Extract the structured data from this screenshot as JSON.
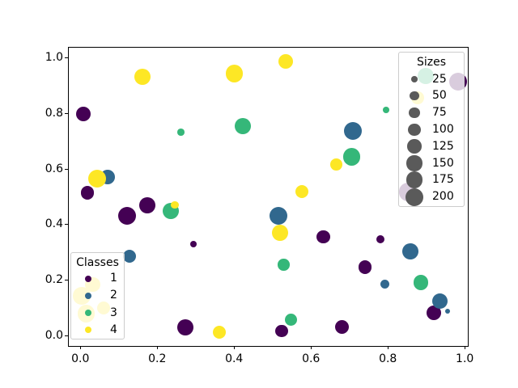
{
  "figure": {
    "background": "#ffffff",
    "axes_edge_color": "#000000"
  },
  "chart_data": {
    "type": "scatter",
    "title": "",
    "xlabel": "",
    "ylabel": "",
    "grid": false,
    "xlim": [
      -0.03,
      1.008
    ],
    "ylim": [
      -0.035,
      1.035
    ],
    "x_ticks": [
      0.0,
      0.2,
      0.4,
      0.6,
      0.8,
      1.0
    ],
    "y_ticks": [
      0.0,
      0.2,
      0.4,
      0.6,
      0.8,
      1.0
    ],
    "x_tick_labels": [
      "0.0",
      "0.2",
      "0.4",
      "0.6",
      "0.8",
      "1.0"
    ],
    "y_tick_labels": [
      "0.0",
      "0.2",
      "0.4",
      "0.6",
      "0.8",
      "1.0"
    ],
    "size_note": "points are [x, y, size] where size matches the Sizes legend scale (25-200)",
    "series": [
      {
        "name": "1",
        "color": "#440154",
        "points": [
          [
            0.008,
            0.797,
            140
          ],
          [
            0.018,
            0.514,
            110
          ],
          [
            0.122,
            0.432,
            200
          ],
          [
            0.175,
            0.469,
            160
          ],
          [
            0.294,
            0.33,
            30
          ],
          [
            0.274,
            0.032,
            160
          ],
          [
            0.524,
            0.019,
            95
          ],
          [
            0.632,
            0.357,
            110
          ],
          [
            0.681,
            0.034,
            120
          ],
          [
            0.741,
            0.248,
            110
          ],
          [
            0.78,
            0.348,
            40
          ],
          [
            0.852,
            0.517,
            210
          ],
          [
            0.919,
            0.085,
            130
          ],
          [
            0.983,
            0.912,
            200
          ]
        ]
      },
      {
        "name": "2",
        "color": "#31688e",
        "points": [
          [
            0.071,
            0.57,
            130
          ],
          [
            0.128,
            0.287,
            110
          ],
          [
            0.515,
            0.433,
            200
          ],
          [
            0.709,
            0.736,
            200
          ],
          [
            0.792,
            0.186,
            50
          ],
          [
            0.859,
            0.304,
            160
          ],
          [
            0.936,
            0.126,
            150
          ],
          [
            0.956,
            0.09,
            15
          ]
        ]
      },
      {
        "name": "3",
        "color": "#35b779",
        "points": [
          [
            0.236,
            0.449,
            160
          ],
          [
            0.262,
            0.732,
            30
          ],
          [
            0.423,
            0.754,
            160
          ],
          [
            0.529,
            0.256,
            85
          ],
          [
            0.548,
            0.06,
            95
          ],
          [
            0.706,
            0.644,
            190
          ],
          [
            0.795,
            0.812,
            25
          ],
          [
            0.886,
            0.193,
            140
          ],
          [
            0.899,
            0.933,
            160
          ]
        ]
      },
      {
        "name": "4",
        "color": "#fde725",
        "points": [
          [
            0.004,
            0.145,
            190
          ],
          [
            0.015,
            0.081,
            190
          ],
          [
            0.032,
            0.186,
            140
          ],
          [
            0.043,
            0.565,
            200
          ],
          [
            0.061,
            0.102,
            110
          ],
          [
            0.161,
            0.93,
            160
          ],
          [
            0.246,
            0.47,
            35
          ],
          [
            0.362,
            0.014,
            110
          ],
          [
            0.401,
            0.942,
            185
          ],
          [
            0.52,
            0.37,
            160
          ],
          [
            0.534,
            0.986,
            130
          ],
          [
            0.576,
            0.519,
            110
          ],
          [
            0.665,
            0.617,
            90
          ],
          [
            0.878,
            0.855,
            100
          ]
        ]
      }
    ],
    "legend_sizes_position": "upper right",
    "legend_classes_position": "lower left"
  },
  "legends": {
    "sizes": {
      "title": "Sizes",
      "marker_color": "#5a5a5a",
      "items": [
        {
          "label": "25",
          "s": 25
        },
        {
          "label": "50",
          "s": 50
        },
        {
          "label": "75",
          "s": 75
        },
        {
          "label": "100",
          "s": 100
        },
        {
          "label": "125",
          "s": 125
        },
        {
          "label": "150",
          "s": 150
        },
        {
          "label": "175",
          "s": 175
        },
        {
          "label": "200",
          "s": 200
        }
      ]
    },
    "classes": {
      "title": "Classes",
      "items": [
        {
          "label": "1",
          "color": "#440154"
        },
        {
          "label": "2",
          "color": "#31688e"
        },
        {
          "label": "3",
          "color": "#35b779"
        },
        {
          "label": "4",
          "color": "#fde725"
        }
      ]
    }
  }
}
